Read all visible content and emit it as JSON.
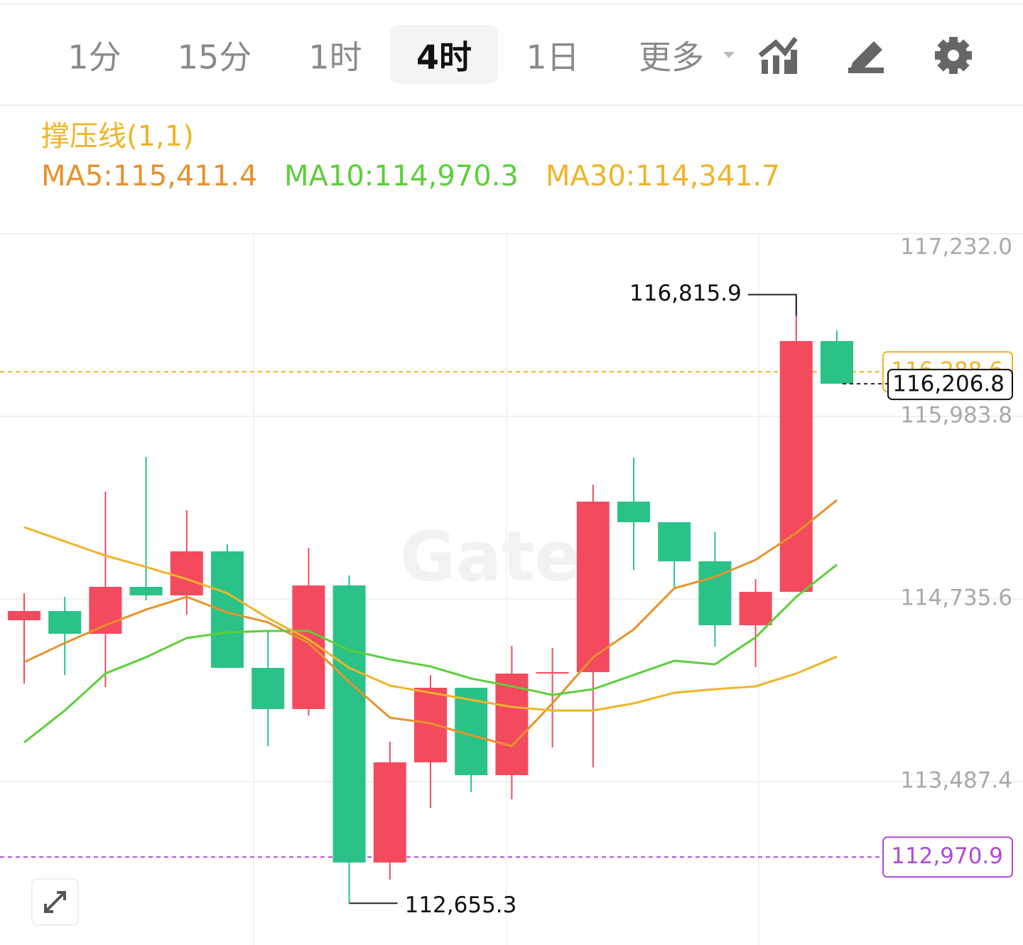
{
  "toolbar": {
    "tabs": [
      "1分",
      "15分",
      "1时",
      "4时",
      "1日",
      "更多"
    ],
    "active_tab": 3
  },
  "chart_data": {
    "type": "candlestick",
    "indicator_title": "撑压线(1,1)",
    "legend_separator": ":",
    "watermark": "Gate",
    "up_color": "#f44a5e",
    "down_color": "#2bc287",
    "open": [
      114589.9,
      114653.0,
      114497.6,
      114818.2,
      114759.9,
      115061.0,
      114264.5,
      113982.8,
      114827.9,
      112933.8,
      113618.6,
      114128.5,
      113531.1,
      114225.6,
      114235.4,
      115401.0,
      115260.1,
      114993.0,
      114555.9,
      114784.2,
      116498.6
    ],
    "high": [
      114774.5,
      114750.2,
      115469.0,
      115706.9,
      115342.7,
      115109.6,
      114512.2,
      115085.3,
      114895.9,
      113759.4,
      114215.9,
      114128.5,
      114415.1,
      114400.5,
      115517.5,
      115702.1,
      115260.1,
      115192.1,
      114871.6,
      116815.9,
      116571.4
    ],
    "low": [
      114157.6,
      114215.9,
      114133.4,
      114725.9,
      114628.8,
      114264.5,
      113730.3,
      113939.1,
      112655.3,
      112817.2,
      113307.7,
      113414.6,
      113366.0,
      113720.5,
      113584.6,
      114934.7,
      114798.7,
      114410.2,
      114269.4,
      114784.2,
      116206.8
    ],
    "close": [
      114653.0,
      114497.6,
      114818.2,
      114759.9,
      115061.0,
      114264.5,
      113982.8,
      114827.9,
      112933.8,
      113618.6,
      114128.5,
      113531.1,
      114225.6,
      114235.4,
      115401.0,
      115260.1,
      114993.0,
      114555.9,
      114784.2,
      116498.6,
      116206.8
    ],
    "series": [
      {
        "name": "MA5",
        "color": "#e8922b",
        "last_label": "115,411.4",
        "values": [
          114303.4,
          114434.5,
          114555.9,
          114662.7,
          114750.2,
          114643.3,
          114575.3,
          114434.5,
          114167.4,
          113924.5,
          113885.7,
          113803.1,
          113730.3,
          114021.7,
          114337.4,
          114526.8,
          114808.5,
          114886.2,
          115002.7,
          115187.3,
          115411.4
        ]
      },
      {
        "name": "MA10",
        "color": "#5ccf3a",
        "last_label": "114,970.3",
        "values": [
          113754.5,
          113973.1,
          114225.6,
          114337.4,
          114468.5,
          114507.3,
          114517.0,
          114517.0,
          114385.9,
          114322.8,
          114274.2,
          114191.6,
          114138.2,
          114079.9,
          114118.8,
          114215.9,
          114313.1,
          114288.8,
          114473.3,
          114750.2,
          114970.3
        ]
      },
      {
        "name": "MA30",
        "color": "#f0b429",
        "last_label": "114,341.7",
        "values": [
          115226.1,
          115129.0,
          115031.9,
          114954.2,
          114871.6,
          114774.5,
          114604.5,
          114458.8,
          114264.5,
          114143.1,
          114094.5,
          114045.9,
          113997.4,
          113973.1,
          113973.1,
          114021.7,
          114094.5,
          114118.8,
          114138.2,
          114225.6,
          114341.7
        ]
      }
    ],
    "max_label": "116,815.9",
    "min_label": "112,655.3",
    "price_lines": [
      {
        "value": 116288.6,
        "label": "116,288.6",
        "color": "#f0b429"
      },
      {
        "value": 112970.9,
        "label": "112,970.9",
        "color": "#b04ad8"
      }
    ],
    "current_price": {
      "value": 116206.8,
      "label": "116,206.8"
    },
    "ylim": [
      112370,
      117232
    ],
    "yticks": [
      {
        "value": 117232.0,
        "label": "117,232.0"
      },
      {
        "value": 115983.8,
        "label": "115,983.8"
      },
      {
        "value": 114735.6,
        "label": "114,735.6"
      },
      {
        "value": 113487.4,
        "label": "113,487.4"
      }
    ],
    "grid": true
  }
}
